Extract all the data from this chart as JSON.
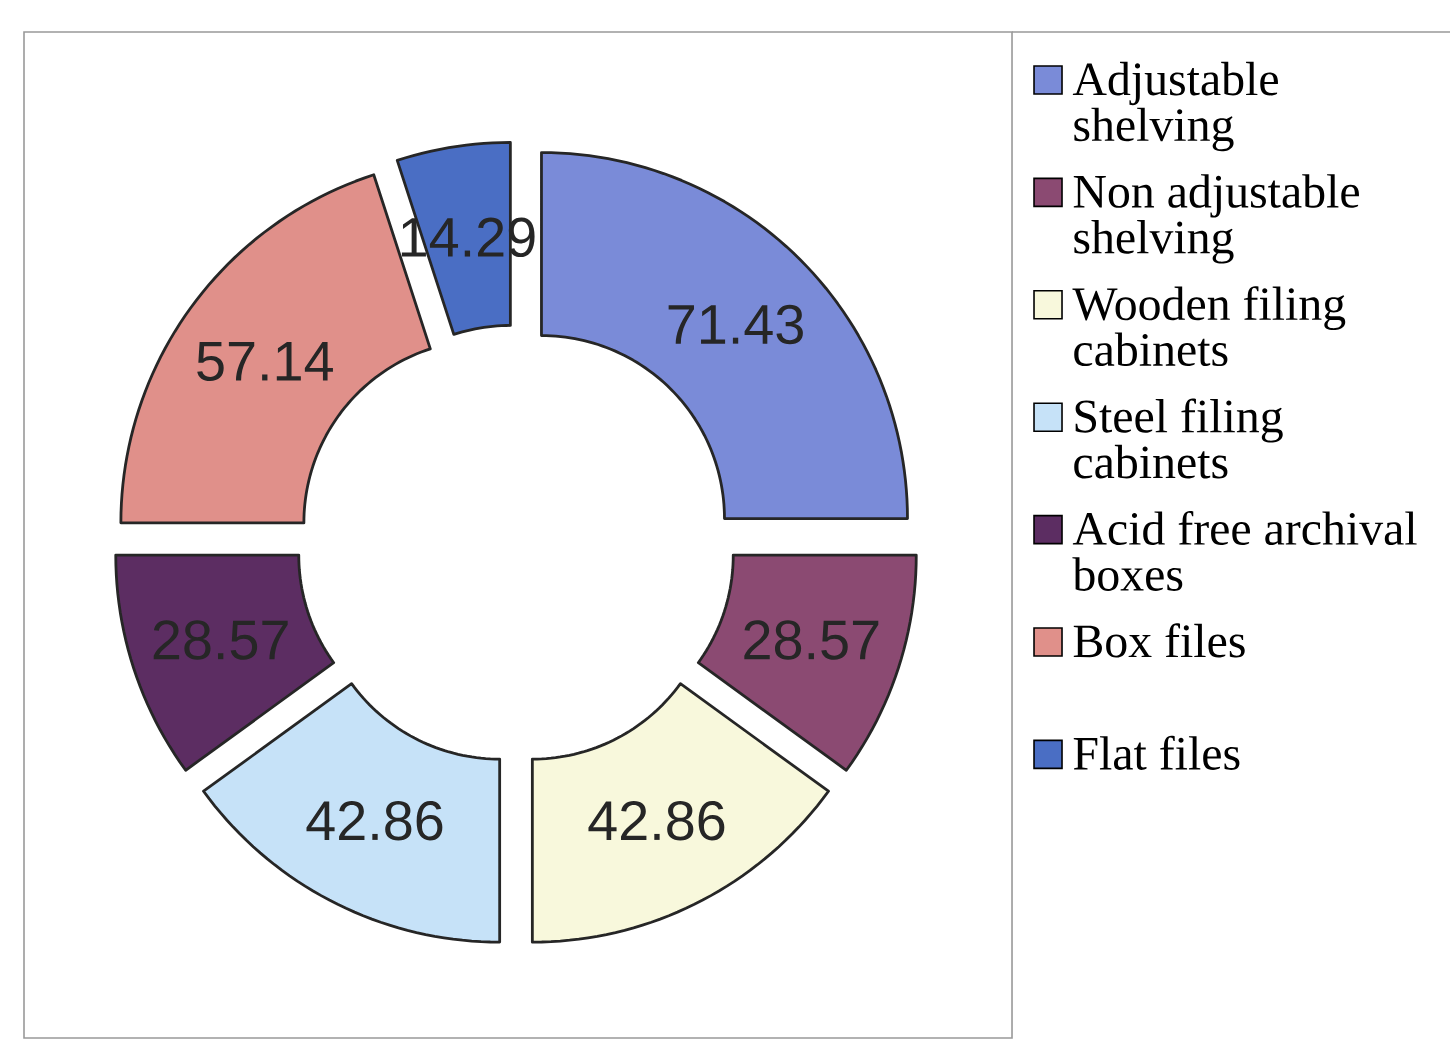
{
  "chart_data": {
    "type": "donut",
    "categories": [
      "Adjustable shelving",
      "Non adjustable shelving",
      "Wooden filing cabinets",
      "Steel filing cabinets",
      "Acid free archival boxes",
      "Box files",
      "Flat files"
    ],
    "values": [
      71.43,
      28.57,
      42.86,
      42.86,
      28.57,
      57.14,
      14.29
    ],
    "colors": [
      "#7a8bd8",
      "#8b4a72",
      "#f8f8dc",
      "#c6e2f8",
      "#5c2d62",
      "#e0908a",
      "#4a6ec4"
    ],
    "data_labels": true,
    "legend": "right"
  }
}
